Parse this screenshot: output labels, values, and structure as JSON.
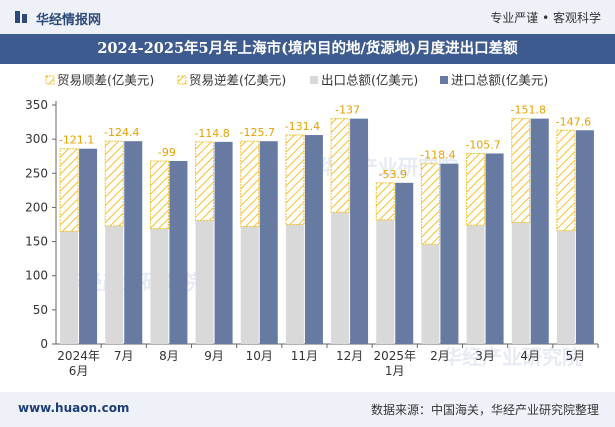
{
  "header": {
    "brand": "华经情报网",
    "tagline": "专业严谨 • 客观科学"
  },
  "title": "2024-2025年5月年上海市(境内目的地/货源地)月度进出口差额",
  "footer": {
    "website": "www.huaon.com",
    "source": "数据来源：中国海关，华经产业研究院整理"
  },
  "watermark": "华经产业研究院",
  "colors": {
    "surplus_border": "#f2c12e",
    "deficit_border": "#f2c12e",
    "export": "#d9d9d9",
    "import": "#677aa1",
    "title_bg": "#3e5b8f"
  },
  "chart_data": {
    "type": "bar",
    "categories": [
      [
        "2024年",
        "6月"
      ],
      [
        "7月"
      ],
      [
        "8月"
      ],
      [
        "9月"
      ],
      [
        "10月"
      ],
      [
        "11月"
      ],
      [
        "12月"
      ],
      [
        "2025年",
        "1月"
      ],
      [
        "2月"
      ],
      [
        "3月"
      ],
      [
        "4月"
      ],
      [
        "5月"
      ]
    ],
    "ylim": [
      0,
      350
    ],
    "yticks": [
      0,
      50,
      100,
      150,
      200,
      250,
      300,
      350
    ],
    "legend": [
      {
        "name": "贸易顺差(亿美元)",
        "style": "surplus"
      },
      {
        "name": "贸易逆差(亿美元)",
        "style": "deficit"
      },
      {
        "name": "出口总额(亿美元)",
        "style": "export"
      },
      {
        "name": "进口总额(亿美元)",
        "style": "import"
      }
    ],
    "series": [
      {
        "name": "贸易逆差(亿美元)",
        "values": [
          -121.1,
          -124.4,
          -99,
          -114.8,
          -125.7,
          -131.4,
          -137,
          -53.9,
          -118.4,
          -105.7,
          -151.8,
          -147.6
        ]
      },
      {
        "name": "出口总额(亿美元)",
        "values": [
          165,
          173,
          169,
          181,
          172,
          175,
          193,
          182,
          146,
          174,
          178,
          166
        ]
      },
      {
        "name": "进口总额(亿美元)",
        "values": [
          286,
          297,
          268,
          296,
          297,
          306,
          330,
          236,
          264,
          279,
          330,
          313
        ]
      }
    ]
  }
}
